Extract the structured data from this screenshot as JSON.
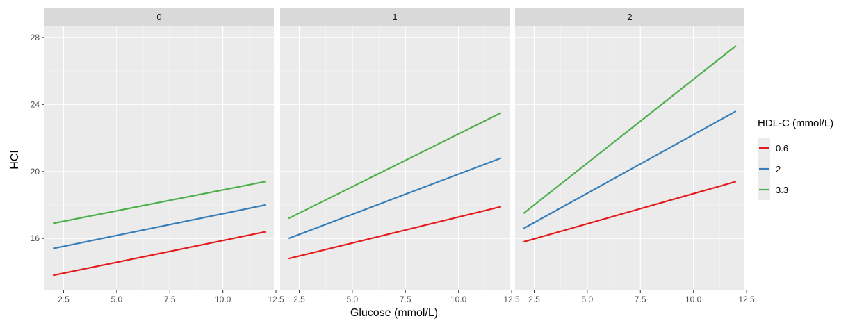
{
  "chart_data": {
    "type": "line",
    "facets": [
      "0",
      "1",
      "2"
    ],
    "xlabel": "Glucose (mmol/L)",
    "ylabel": "HCI",
    "xlim": [
      1.6,
      12.4
    ],
    "ylim": [
      12.9,
      28.7
    ],
    "x_ticks": [
      2.5,
      5.0,
      7.5,
      10.0,
      12.5
    ],
    "x_tick_labels": [
      "2.5",
      "5.0",
      "7.5",
      "10.0",
      "12.5"
    ],
    "y_ticks": [
      16,
      20,
      24,
      28
    ],
    "y_tick_labels": [
      "16",
      "20",
      "24",
      "28"
    ],
    "grid": true,
    "legend": {
      "title": "HDL-C (mmol/L)",
      "position": "right",
      "entries": [
        {
          "label": "0.6",
          "color": "#E41A1C"
        },
        {
          "label": "2",
          "color": "#377EB8"
        },
        {
          "label": "3.3",
          "color": "#4DAF4A"
        }
      ]
    },
    "panels": [
      {
        "facet": "0",
        "series": [
          {
            "name": "0.6",
            "color": "#E41A1C",
            "x": [
              2,
              12
            ],
            "y": [
              13.8,
              16.4
            ]
          },
          {
            "name": "2",
            "color": "#377EB8",
            "x": [
              2,
              12
            ],
            "y": [
              15.4,
              18.0
            ]
          },
          {
            "name": "3.3",
            "color": "#4DAF4A",
            "x": [
              2,
              12
            ],
            "y": [
              16.9,
              19.4
            ]
          }
        ]
      },
      {
        "facet": "1",
        "series": [
          {
            "name": "0.6",
            "color": "#E41A1C",
            "x": [
              2,
              12
            ],
            "y": [
              14.8,
              17.9
            ]
          },
          {
            "name": "2",
            "color": "#377EB8",
            "x": [
              2,
              12
            ],
            "y": [
              16.0,
              20.8
            ]
          },
          {
            "name": "3.3",
            "color": "#4DAF4A",
            "x": [
              2,
              12
            ],
            "y": [
              17.2,
              23.5
            ]
          }
        ]
      },
      {
        "facet": "2",
        "series": [
          {
            "name": "0.6",
            "color": "#E41A1C",
            "x": [
              2,
              12
            ],
            "y": [
              15.8,
              19.4
            ]
          },
          {
            "name": "2",
            "color": "#377EB8",
            "x": [
              2,
              12
            ],
            "y": [
              16.6,
              23.6
            ]
          },
          {
            "name": "3.3",
            "color": "#4DAF4A",
            "x": [
              2,
              12
            ],
            "y": [
              17.5,
              27.5
            ]
          }
        ]
      }
    ]
  }
}
